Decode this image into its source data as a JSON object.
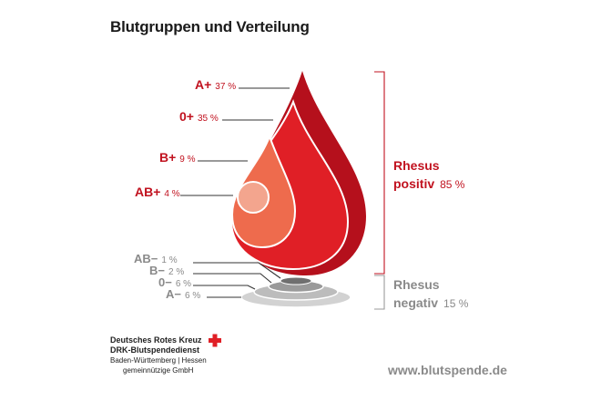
{
  "title": "Blutgruppen und Verteilung",
  "positive_groups": [
    {
      "group": "A+",
      "percent": "37 %"
    },
    {
      "group": "0+",
      "percent": "35 %"
    },
    {
      "group": "B+",
      "percent": "9 %"
    },
    {
      "group": "AB+",
      "percent": "4 %"
    }
  ],
  "negative_groups": [
    {
      "group": "AB−",
      "percent": "1 %"
    },
    {
      "group": "B−",
      "percent": "2 %"
    },
    {
      "group": "0−",
      "percent": "6 %"
    },
    {
      "group": "A−",
      "percent": "6 %"
    }
  ],
  "rhesus_positive": {
    "line1": "Rhesus",
    "line2": "positiv",
    "percent": "85 %"
  },
  "rhesus_negative": {
    "line1": "Rhesus",
    "line2": "negativ",
    "percent": "15 %"
  },
  "organization": {
    "name": "Deutsches Rotes Kreuz",
    "service": "DRK-Blutspendedienst",
    "region": "Baden-Württemberg | Hessen",
    "legal": "gemeinnützige GmbH"
  },
  "website": "www.blutspende.de",
  "colors": {
    "dark_red": "#b5101c",
    "red": "#e01f26",
    "coral": "#ee6b4d",
    "salmon": "#f3a58e",
    "accent_text": "#c1121f",
    "gray_text": "#8a8a8a"
  }
}
